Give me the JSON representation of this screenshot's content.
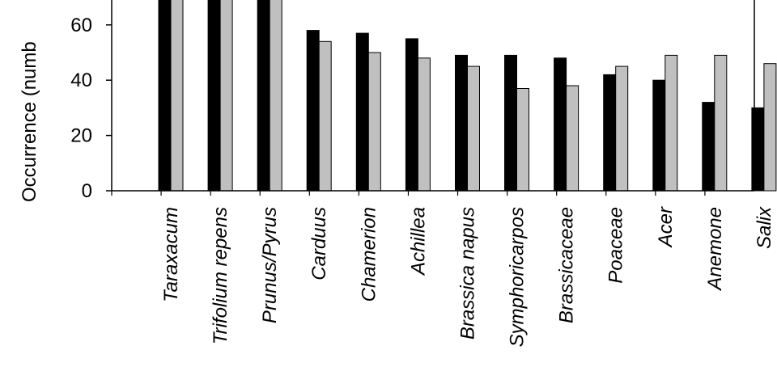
{
  "chart_data": {
    "type": "bar",
    "ylabel": "Occurrence (numb",
    "ylim": [
      0,
      70
    ],
    "yticks": [
      "0",
      "20",
      "40",
      "60"
    ],
    "categories": [
      "Taraxacum",
      "Trifolium repens",
      "Prunus/Pyrus",
      "Carduus",
      "Chamerion",
      "Achillea",
      "Brassica napus",
      "Symphoricarpos",
      "Brassicaceae",
      "Poaceae",
      "Acer",
      "Anemone",
      "Salix"
    ],
    "series": [
      {
        "color": "#000000",
        "values": [
          70,
          70,
          70,
          58,
          57,
          55,
          49,
          49,
          48,
          42,
          40,
          32,
          30
        ]
      },
      {
        "color": "#c0c0c0",
        "values": [
          70,
          70,
          70,
          54,
          50,
          48,
          45,
          37,
          38,
          45,
          49,
          49,
          46
        ]
      }
    ]
  }
}
